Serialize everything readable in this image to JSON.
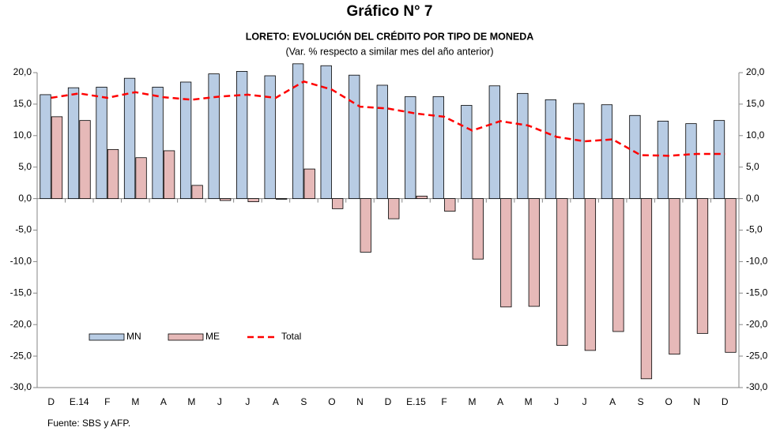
{
  "chart_data": {
    "type": "bar",
    "title": "Gráfico N° 7",
    "subtitle": "LORETO: EVOLUCIÓN DEL CRÉDITO POR TIPO DE MONEDA",
    "note": "(Var. % respecto a similar mes del año anterior)",
    "source": "Fuente: SBS y AFP.",
    "categories": [
      "D",
      "E.14",
      "F",
      "M",
      "A",
      "M",
      "J",
      "J",
      "A",
      "S",
      "O",
      "N",
      "D",
      "E.15",
      "F",
      "M",
      "A",
      "M",
      "J",
      "J",
      "A",
      "S",
      "O",
      "N",
      "D"
    ],
    "series": [
      {
        "name": "MN",
        "type": "bar",
        "color": "#b8cce4",
        "values": [
          16.5,
          17.6,
          17.7,
          19.1,
          17.7,
          18.5,
          19.8,
          20.2,
          19.5,
          21.4,
          21.1,
          19.6,
          18.0,
          16.2,
          16.2,
          14.8,
          17.9,
          16.7,
          15.7,
          15.1,
          14.9,
          13.2,
          12.3,
          11.9,
          12.4
        ]
      },
      {
        "name": "ME",
        "type": "bar",
        "color": "#e6b9b8",
        "values": [
          13.0,
          12.4,
          7.8,
          6.5,
          7.6,
          2.1,
          -0.3,
          -0.5,
          -0.1,
          4.7,
          -1.6,
          -8.5,
          -3.2,
          0.4,
          -2.0,
          -9.6,
          -17.2,
          -17.1,
          -23.3,
          -24.1,
          -21.1,
          -28.6,
          -24.7,
          -21.4,
          -24.4
        ]
      },
      {
        "name": "Total",
        "type": "line",
        "color": "#ff0000",
        "values": [
          16.0,
          16.7,
          16.0,
          16.9,
          16.1,
          15.7,
          16.2,
          16.5,
          16.0,
          18.6,
          17.3,
          14.6,
          14.3,
          13.5,
          13.0,
          10.8,
          12.3,
          11.6,
          9.8,
          9.1,
          9.4,
          6.9,
          6.8,
          7.1,
          7.1
        ]
      }
    ],
    "ylim": [
      -30,
      20
    ],
    "yticks": [
      {
        "value": 20,
        "label": "20,0"
      },
      {
        "value": 15,
        "label": "15,0"
      },
      {
        "value": 10,
        "label": "10,0"
      },
      {
        "value": 5,
        "label": "5,0"
      },
      {
        "value": 0,
        "label": "0,0"
      },
      {
        "value": -5,
        "label": "-5,0"
      },
      {
        "value": -10,
        "label": "-10,0"
      },
      {
        "value": -15,
        "label": "-15,0"
      },
      {
        "value": -20,
        "label": "-20,0"
      },
      {
        "value": -25,
        "label": "-25,0"
      },
      {
        "value": -30,
        "label": "-30,0"
      }
    ],
    "y2lim": [
      -30,
      20
    ],
    "y2ticks": [
      {
        "value": 20,
        "label": "20,0"
      },
      {
        "value": 15,
        "label": "15,0"
      },
      {
        "value": 10,
        "label": "10,0"
      },
      {
        "value": 5,
        "label": "5,0"
      },
      {
        "value": 0,
        "label": "0,0"
      },
      {
        "value": -5,
        "label": "-5,0"
      },
      {
        "value": -10,
        "label": "-10,0"
      },
      {
        "value": -15,
        "label": "-15,0"
      },
      {
        "value": -20,
        "label": "-20,0"
      },
      {
        "value": -25,
        "label": "-25,0"
      },
      {
        "value": -30,
        "label": "-30,0"
      }
    ],
    "legend": "lower-left"
  }
}
